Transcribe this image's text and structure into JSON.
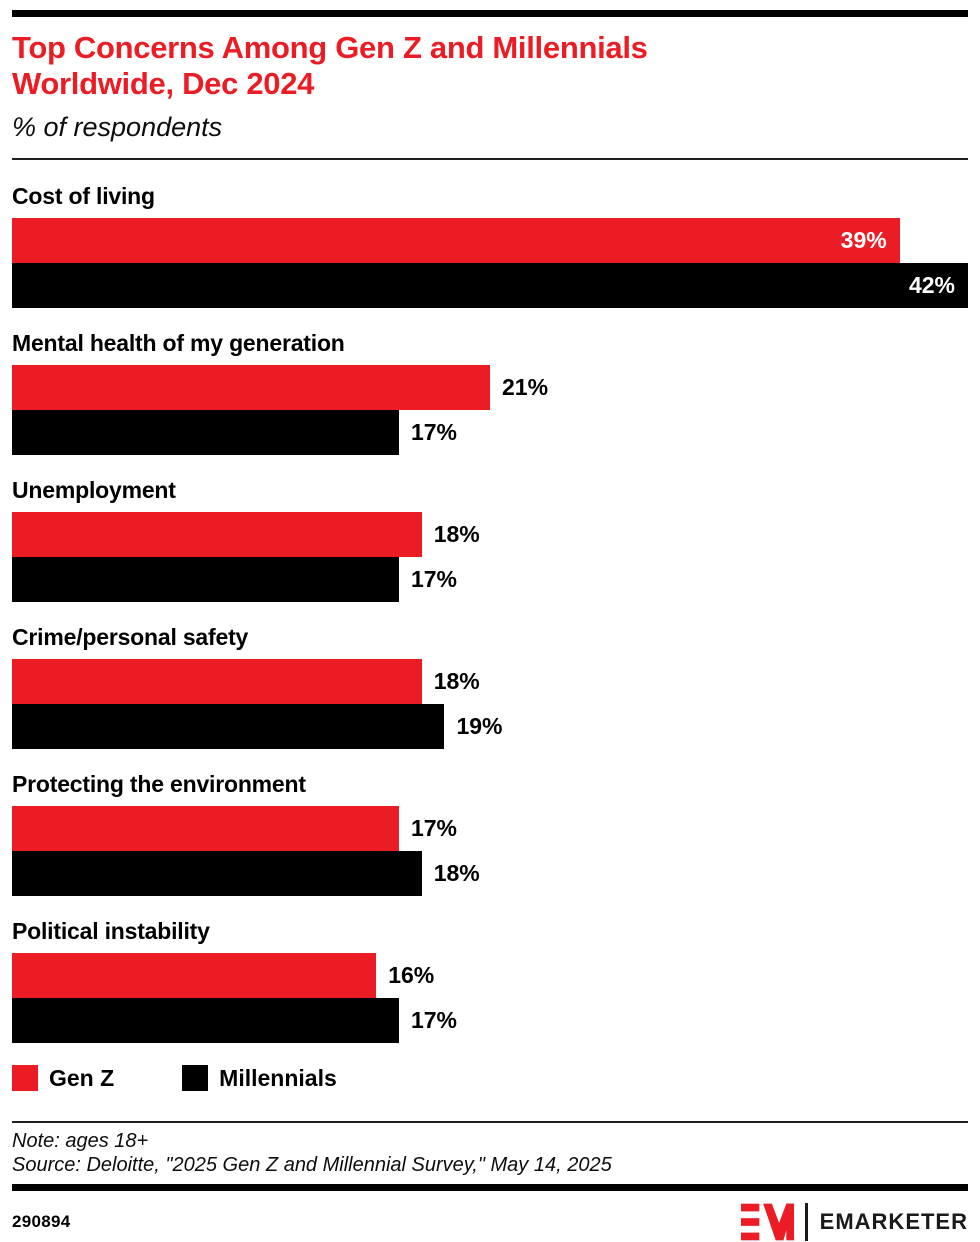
{
  "header": {
    "title": "Top Concerns Among Gen Z and Millennials Worldwide, Dec 2024",
    "subtitle": "% of respondents"
  },
  "chart_data": {
    "type": "bar",
    "orientation": "horizontal",
    "title": "Top Concerns Among Gen Z and Millennials Worldwide, Dec 2024",
    "subtitle": "% of respondents",
    "categories": [
      "Cost of living",
      "Mental health of my generation",
      "Unemployment",
      "Crime/personal safety",
      "Protecting the environment",
      "Political instability"
    ],
    "series": [
      {
        "name": "Gen Z",
        "color": "#ec1c24",
        "values": [
          39,
          21,
          18,
          18,
          17,
          16
        ]
      },
      {
        "name": "Millennials",
        "color": "#000000",
        "values": [
          42,
          17,
          17,
          19,
          18,
          17
        ]
      }
    ],
    "value_suffix": "%",
    "xlabel": "",
    "ylabel": "",
    "xlim": [
      0,
      42
    ],
    "grid": false,
    "legend_position": "bottom",
    "value_label_inside_threshold_pct": 60
  },
  "footer": {
    "note": "Note: ages 18+",
    "source": "Source: Deloitte, \"2025 Gen Z and Millennial Survey,\" May 14, 2025",
    "chart_id": "290894",
    "brand": "EMARKETER"
  },
  "colors": {
    "accent_red": "#ec1c24",
    "black": "#000000",
    "white": "#ffffff"
  }
}
